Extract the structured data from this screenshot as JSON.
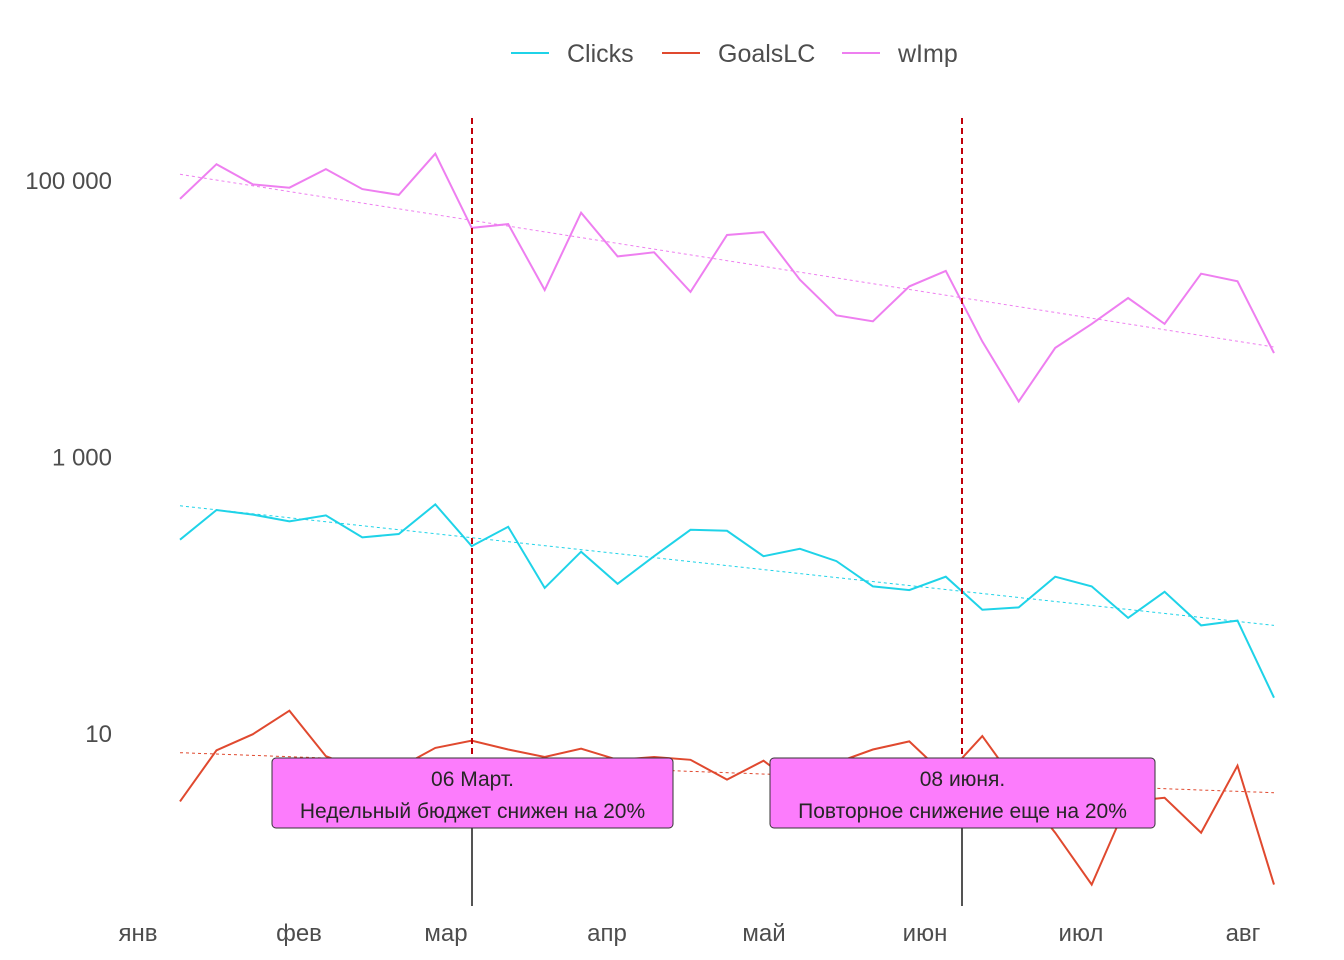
{
  "chart_data": {
    "type": "line",
    "y_scale": "log10",
    "ylim": [
      0.8,
      300000
    ],
    "y_ticks": [
      {
        "value": 100000,
        "label": "100 000"
      },
      {
        "value": 1000,
        "label": "1 000"
      },
      {
        "value": 10,
        "label": "10"
      }
    ],
    "x_ticks": [
      "янв",
      "фев",
      "мар",
      "апр",
      "май",
      "июн",
      "июл",
      "авг"
    ],
    "legend": {
      "position": "top-center"
    },
    "grid": false,
    "colors": {
      "Clicks": "#1fd3e8",
      "GoalsLC": "#e0492f",
      "wImp": "#ee7ff0",
      "vline": "#c0000b",
      "annotation_fill": "#fc7cfc"
    },
    "series": [
      {
        "name": "Clicks",
        "values": [
          250,
          410,
          380,
          340,
          375,
          260,
          275,
          450,
          225,
          310,
          112,
          205,
          120,
          190,
          295,
          290,
          190,
          215,
          175,
          115,
          108,
          135,
          78,
          81,
          135,
          115,
          68,
          105,
          60,
          65,
          18
        ]
      },
      {
        "name": "GoalsLC",
        "values": [
          3.2,
          7.5,
          9.8,
          14.5,
          6.8,
          5.4,
          5.6,
          7.8,
          8.8,
          7.6,
          6.7,
          7.7,
          6.4,
          6.7,
          6.4,
          4.6,
          6.3,
          4.0,
          6.1,
          7.6,
          8.7,
          4.9,
          9.5,
          4.1,
          1.9,
          0.8,
          3.2,
          3.4,
          1.9,
          5.8,
          0.8
        ]
      },
      {
        "name": "wImp",
        "values": [
          73000,
          130000,
          93000,
          88000,
          120000,
          86000,
          78000,
          155000,
          45000,
          48000,
          16000,
          58000,
          28000,
          30000,
          15500,
          40000,
          42000,
          19000,
          10500,
          9500,
          17000,
          22000,
          6800,
          2500,
          6100,
          9100,
          14000,
          9100,
          21000,
          18500,
          5600
        ]
      },
      {
        "name": "Clicks trend",
        "values": [
          440,
          60
        ]
      },
      {
        "name": "GoalsLC trend",
        "values": [
          7.2,
          3.7
        ]
      },
      {
        "name": "wImp trend",
        "values": [
          110000,
          6200
        ]
      }
    ],
    "vlines": [
      {
        "date": "06 Март.",
        "label": "06 Март.",
        "text": "Недельный бюджет снижен на 20%"
      },
      {
        "date": "08 июня.",
        "label": "08 июня.",
        "text": "Повторное снижение еще на 20%"
      }
    ]
  }
}
